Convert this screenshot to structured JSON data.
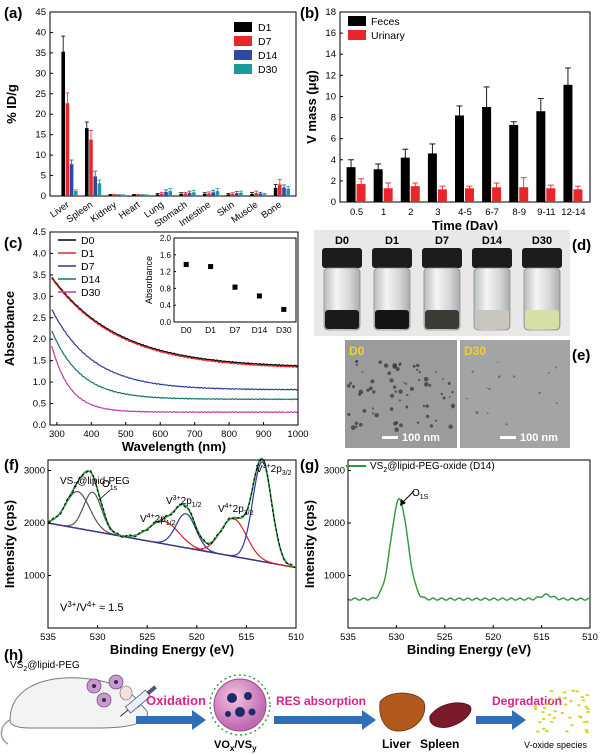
{
  "panels": {
    "a": {
      "label": "(a)"
    },
    "b": {
      "label": "(b)"
    },
    "c": {
      "label": "(c)"
    },
    "d": {
      "label": "(d)",
      "vials": [
        "D0",
        "D1",
        "D7",
        "D14",
        "D30"
      ],
      "liquid_colors": [
        "#1a1a1a",
        "#151515",
        "#3b3b35",
        "#c8c6bf",
        "#d8dfa6"
      ]
    },
    "e": {
      "label": "(e)",
      "images": [
        {
          "tag": "D0",
          "scale": "100 nm"
        },
        {
          "tag": "D30",
          "scale": "100 nm"
        }
      ]
    },
    "f": {
      "label": "(f)",
      "sample": "VS",
      "sample_sub": "2",
      "sample_rest": "@lipid-PEG",
      "ratio": "V",
      "ratio_sup1": "3+",
      "ratio_mid": "/V",
      "ratio_sup2": "4+",
      "ratio_end": " ≈ 1.5",
      "peaks": {
        "o1s": "O",
        "o1s_sub": "1s",
        "v4_1": "V",
        "v4_1_sup": "4+",
        "v4_1_main": "2p",
        "v4_1_sub": "1/2",
        "v3_1": "V",
        "v3_1_sup": "3+",
        "v3_1_main": "2p",
        "v3_1_sub": "1/2",
        "v4_2": "V",
        "v4_2_sup": "4+",
        "v4_2_main": "2p",
        "v4_2_sub": "3/2",
        "v3_2": "V",
        "v3_2_sup": "3+",
        "v3_2_main": "2p",
        "v3_2_sub": "3/2"
      }
    },
    "g": {
      "label": "(g)",
      "legend": "VS",
      "legend_sub": "2",
      "legend_rest": "@lipid-PEG-oxide (D14)",
      "peak": "O",
      "peak_sub": "1S"
    },
    "h": {
      "label": "(h)",
      "sample": "VS",
      "sample_sub": "2",
      "sample_rest": "@lipid-PEG",
      "step1": "Oxidation",
      "product": "VO",
      "product_sub1": "x",
      "product_mid": "/VS",
      "product_sub2": "y",
      "step2": "RES absorption",
      "organ1": "Liver",
      "organ2": "Spleen",
      "step3": "Degradation",
      "final": "V-oxide species",
      "colors": {
        "arrow": "#2e6fb7",
        "step_text": "#d6228a"
      }
    }
  },
  "chart_data": [
    {
      "panel": "a",
      "type": "bar",
      "ylabel": "% ID/g",
      "ylim": [
        0,
        45
      ],
      "yticks": [
        0,
        5,
        10,
        15,
        20,
        25,
        30,
        35,
        40,
        45
      ],
      "categories": [
        "Liver",
        "Spleen",
        "Kidney",
        "Heart",
        "Lung",
        "Stomach",
        "Intestine",
        "Skin",
        "Muscle",
        "Bone"
      ],
      "series": [
        {
          "name": "D1",
          "color": "#000000",
          "values": [
            35.3,
            16.6,
            0.3,
            0.3,
            0.4,
            0.5,
            0.5,
            0.4,
            0.5,
            2.0
          ],
          "errors": [
            3.8,
            1.5,
            0.1,
            0.1,
            0.2,
            0.3,
            0.3,
            0.2,
            0.4,
            0.8
          ]
        },
        {
          "name": "D7",
          "color": "#e8262b",
          "values": [
            22.7,
            13.8,
            0.3,
            0.3,
            0.6,
            0.6,
            0.6,
            0.5,
            0.7,
            2.8
          ],
          "errors": [
            2.5,
            2.2,
            0.1,
            0.1,
            0.3,
            0.3,
            0.4,
            0.3,
            0.5,
            1.2
          ]
        },
        {
          "name": "D14",
          "color": "#2d4aa1",
          "values": [
            7.8,
            4.8,
            0.2,
            0.2,
            1.0,
            0.8,
            0.9,
            0.7,
            0.6,
            2.1
          ],
          "errors": [
            1.0,
            1.3,
            0.1,
            0.1,
            0.5,
            0.4,
            0.5,
            0.4,
            0.3,
            0.6
          ]
        },
        {
          "name": "D30",
          "color": "#1a9a9a",
          "values": [
            1.2,
            3.1,
            0.2,
            0.2,
            1.2,
            0.9,
            1.2,
            0.8,
            0.4,
            1.8
          ],
          "errors": [
            0.3,
            0.8,
            0.1,
            0.1,
            0.6,
            0.5,
            0.6,
            0.4,
            0.2,
            0.5
          ]
        }
      ],
      "legend": "top-right"
    },
    {
      "panel": "b",
      "type": "bar",
      "xlabel": "Time (Day)",
      "ylabel": "V mass (μg)",
      "ylim": [
        0,
        18
      ],
      "yticks": [
        0,
        2,
        4,
        6,
        8,
        10,
        12,
        14,
        16,
        18
      ],
      "categories": [
        "0.5",
        "1",
        "2",
        "3",
        "4-5",
        "6-7",
        "8-9",
        "9-11",
        "12-14"
      ],
      "series": [
        {
          "name": "Feces",
          "color": "#000000",
          "values": [
            3.3,
            3.1,
            4.2,
            4.6,
            8.2,
            9.0,
            7.3,
            8.6,
            11.1
          ],
          "errors": [
            0.7,
            0.5,
            0.8,
            0.9,
            0.9,
            1.9,
            0.3,
            1.2,
            1.6
          ]
        },
        {
          "name": "Urinary",
          "color": "#e8262b",
          "values": [
            1.7,
            1.3,
            1.5,
            1.2,
            1.3,
            1.4,
            1.4,
            1.3,
            1.2
          ],
          "errors": [
            0.5,
            0.5,
            0.3,
            0.3,
            0.2,
            0.4,
            0.9,
            0.3,
            0.3
          ]
        }
      ],
      "legend": "top-left"
    },
    {
      "panel": "c",
      "type": "line",
      "xlabel": "Wavelength (nm)",
      "ylabel": "Absorbance",
      "xlim": [
        280,
        1000
      ],
      "ylim": [
        0,
        4.5
      ],
      "xticks": [
        300,
        400,
        500,
        600,
        700,
        800,
        900,
        1000
      ],
      "yticks": [
        0.0,
        0.5,
        1.0,
        1.5,
        2.0,
        2.5,
        3.0,
        3.5,
        4.0,
        4.5
      ],
      "series": [
        {
          "name": "D0",
          "color": "#000000",
          "start": 3.45,
          "end": 1.33,
          "k": 0.0052
        },
        {
          "name": "D1",
          "color": "#e8262b",
          "start": 3.42,
          "end": 1.3,
          "k": 0.0052
        },
        {
          "name": "D7",
          "color": "#2d3a9b",
          "start": 2.7,
          "end": 0.82,
          "k": 0.0085
        },
        {
          "name": "D14",
          "color": "#12766a",
          "start": 2.2,
          "end": 0.6,
          "k": 0.012
        },
        {
          "name": "D30",
          "color": "#c23ba6",
          "start": 1.85,
          "end": 0.3,
          "k": 0.019
        }
      ],
      "legend": "top-left",
      "inset": {
        "ylabel": "Absorbance",
        "ylim": [
          0.0,
          2.0
        ],
        "yticks": [
          0.0,
          0.4,
          0.8,
          1.2,
          1.6,
          2.0
        ],
        "categories": [
          "D0",
          "D1",
          "D7",
          "D14",
          "D30"
        ],
        "values": [
          1.37,
          1.32,
          0.83,
          0.62,
          0.3
        ],
        "errors": [
          0.05,
          0.04,
          0.05,
          0.04,
          0.04
        ]
      }
    },
    {
      "panel": "f",
      "type": "line",
      "xlabel": "Binding Energy (eV)",
      "ylabel": "Intensity (cps)",
      "xlim": [
        535,
        510
      ],
      "ylim": [
        0,
        3200
      ],
      "xticks": [
        535,
        530,
        525,
        520,
        515,
        510
      ],
      "yticks": [
        1000,
        2000,
        3000
      ],
      "components": [
        {
          "name": "O1s",
          "center": 530.5,
          "height": 740,
          "width": 0.9,
          "color": "#555555"
        },
        {
          "name": "O1s-2",
          "center": 532.0,
          "height": 700,
          "width": 1.2,
          "color": "#555555"
        },
        {
          "name": "V4+ 2p1/2",
          "center": 523.3,
          "height": 430,
          "width": 1.5,
          "color": "#d81f2a"
        },
        {
          "name": "V3+ 2p1/2",
          "center": 521.1,
          "height": 650,
          "width": 1.0,
          "color": "#2d3a9b"
        },
        {
          "name": "V4+ 2p3/2",
          "center": 516.3,
          "height": 720,
          "width": 1.3,
          "color": "#d81f2a"
        },
        {
          "name": "V3+ 2p3/2",
          "center": 513.4,
          "height": 1900,
          "width": 0.95,
          "color": "#2d3a9b"
        }
      ]
    },
    {
      "panel": "g",
      "type": "line",
      "xlabel": "Binding Energy (eV)",
      "ylabel": "Intensity (cps)",
      "xlim": [
        535,
        510
      ],
      "ylim": [
        0,
        3200
      ],
      "xticks": [
        535,
        530,
        525,
        520,
        515,
        510
      ],
      "yticks": [
        1000,
        2000,
        3000
      ],
      "series": [
        {
          "name": "VS2@lipid-PEG-oxide (D14)",
          "color": "#2a9a3a",
          "peak_center": 529.7,
          "peak_height": 1900,
          "baseline": 550
        }
      ]
    }
  ]
}
